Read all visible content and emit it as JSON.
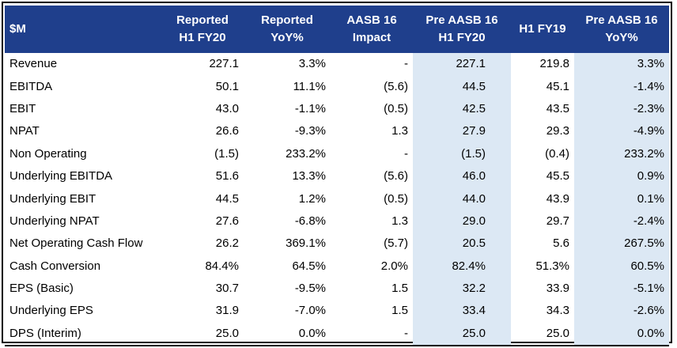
{
  "table": {
    "headers": {
      "label": "$M",
      "cols": [
        {
          "line1": "Reported",
          "line2": "H1 FY20"
        },
        {
          "line1": "Reported",
          "line2": "YoY%"
        },
        {
          "line1": "AASB 16",
          "line2": "Impact"
        },
        {
          "line1": "Pre AASB 16",
          "line2": "H1 FY20"
        },
        {
          "line1": "H1 FY19",
          "line2": ""
        },
        {
          "line1": "Pre AASB 16",
          "line2": "YoY%"
        }
      ]
    },
    "rows": [
      {
        "label": "Revenue",
        "c1": "227.1",
        "c2": "3.3%",
        "c3": "-",
        "c4": "227.1",
        "c5": "219.8",
        "c6": "3.3%"
      },
      {
        "label": "EBITDA",
        "c1": "50.1",
        "c2": "11.1%",
        "c3": "(5.6)",
        "c4": "44.5",
        "c5": "45.1",
        "c6": "-1.4%"
      },
      {
        "label": "EBIT",
        "c1": "43.0",
        "c2": "-1.1%",
        "c3": "(0.5)",
        "c4": "42.5",
        "c5": "43.5",
        "c6": "-2.3%"
      },
      {
        "label": "NPAT",
        "c1": "26.6",
        "c2": "-9.3%",
        "c3": "1.3",
        "c4": "27.9",
        "c5": "29.3",
        "c6": "-4.9%"
      },
      {
        "label": "Non Operating",
        "c1": "(1.5)",
        "c2": "233.2%",
        "c3": "-",
        "c4": "(1.5)",
        "c5": "(0.4)",
        "c6": "233.2%"
      },
      {
        "label": "Underlying EBITDA",
        "c1": "51.6",
        "c2": "13.3%",
        "c3": "(5.6)",
        "c4": "46.0",
        "c5": "45.5",
        "c6": "0.9%"
      },
      {
        "label": "Underlying EBIT",
        "c1": "44.5",
        "c2": "1.2%",
        "c3": "(0.5)",
        "c4": "44.0",
        "c5": "43.9",
        "c6": "0.1%"
      },
      {
        "label": "Underlying NPAT",
        "c1": "27.6",
        "c2": "-6.8%",
        "c3": "1.3",
        "c4": "29.0",
        "c5": "29.7",
        "c6": "-2.4%"
      },
      {
        "label": "Net Operating Cash Flow",
        "c1": "26.2",
        "c2": "369.1%",
        "c3": "(5.7)",
        "c4": "20.5",
        "c5": "5.6",
        "c6": "267.5%"
      },
      {
        "label": "Cash Conversion",
        "c1": "84.4%",
        "c2": "64.5%",
        "c3": "2.0%",
        "c4": "82.4%",
        "c5": "51.3%",
        "c6": "60.5%"
      },
      {
        "label": "EPS (Basic)",
        "c1": "30.7",
        "c2": "-9.5%",
        "c3": "1.5",
        "c4": "32.2",
        "c5": "33.9",
        "c6": "-5.1%"
      },
      {
        "label": "Underlying EPS",
        "c1": "31.9",
        "c2": "-7.0%",
        "c3": "1.5",
        "c4": "33.4",
        "c5": "34.3",
        "c6": "-2.6%"
      },
      {
        "label": "DPS (Interim)",
        "c1": "25.0",
        "c2": "0.0%",
        "c3": "-",
        "c4": "25.0",
        "c5": "25.0",
        "c6": "0.0%"
      }
    ]
  },
  "colors": {
    "header_bg": "#1f3f8c",
    "header_text": "#ffffff",
    "highlight_column_bg": "#dce8f4"
  }
}
